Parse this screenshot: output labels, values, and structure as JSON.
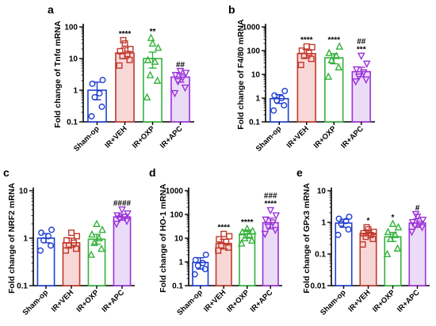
{
  "colors": {
    "Sham-op": "#1f3fd0",
    "IR+VEH": "#c0392b",
    "IR+OXP": "#33b23a",
    "IR+APC": "#9b30d9",
    "fill_VEH": "#f8d7d7",
    "fill_APC": "#eadcf7"
  },
  "chart_data": [
    {
      "id": "a",
      "label": "a",
      "type": "bar",
      "yscale": "log",
      "ylabel": "Fold change of Tnfα mRNA",
      "ylim": [
        0.1,
        100
      ],
      "yticks": [
        "0.1",
        "1",
        "10",
        "100"
      ],
      "categories": [
        "Sham-op",
        "IR+VEH",
        "IR+OXP",
        "IR+APC"
      ],
      "values": [
        1.0,
        15,
        10,
        2.6
      ],
      "errors": [
        [
          0.5,
          1.8
        ],
        [
          10,
          22
        ],
        [
          5,
          16
        ],
        [
          1.8,
          3.4
        ]
      ],
      "points": [
        [
          0.15,
          0.3,
          0.6,
          0.8,
          1.6,
          2.1
        ],
        [
          6,
          9,
          12,
          14,
          17,
          20,
          30,
          38
        ],
        [
          0.6,
          2,
          3,
          8,
          9,
          22,
          30,
          45
        ],
        [
          0.8,
          1.2,
          1.9,
          2.5,
          3,
          3.5,
          4
        ]
      ],
      "annotations": [
        "",
        "****",
        "**",
        "##"
      ],
      "markers": [
        "circle",
        "square",
        "triangle",
        "triangle-down"
      ]
    },
    {
      "id": "b",
      "label": "b",
      "type": "bar",
      "yscale": "log",
      "ylabel": "Fold change of F4/80 mRNA",
      "ylim": [
        0.1,
        1000
      ],
      "yticks": [
        "0.1",
        "1",
        "10",
        "100",
        "1000"
      ],
      "categories": [
        "Sham-op",
        "IR+VEH",
        "IR+OXP",
        "IR+APC"
      ],
      "values": [
        0.95,
        75,
        50,
        13
      ],
      "errors": [
        [
          0.6,
          1.4
        ],
        [
          50,
          110
        ],
        [
          28,
          75
        ],
        [
          8,
          20
        ]
      ],
      "points": [
        [
          0.3,
          0.5,
          0.8,
          1.0,
          1.3,
          2.0
        ],
        [
          25,
          45,
          60,
          80,
          100,
          140,
          150
        ],
        [
          8,
          20,
          40,
          60,
          80,
          150
        ],
        [
          5,
          6,
          8,
          12,
          16,
          28,
          60
        ]
      ],
      "annotations": [
        "",
        "****",
        "****",
        "##\n***"
      ],
      "markers": [
        "circle",
        "square",
        "triangle",
        "triangle-down"
      ]
    },
    {
      "id": "c",
      "label": "c",
      "type": "bar",
      "yscale": "log",
      "ylabel": "Fold change of NRF2 mRNA",
      "ylim": [
        0.1,
        10
      ],
      "yticks": [
        "0.1",
        "1",
        "10"
      ],
      "categories": [
        "Sham-op",
        "IR+VEH",
        "IR+OXP",
        "IR+APC"
      ],
      "values": [
        1.0,
        0.8,
        0.95,
        2.8
      ],
      "errors": [
        [
          0.8,
          1.25
        ],
        [
          0.65,
          1.0
        ],
        [
          0.75,
          1.2
        ],
        [
          2.4,
          3.2
        ]
      ],
      "points": [
        [
          0.55,
          0.7,
          0.9,
          1.1,
          1.3,
          1.5
        ],
        [
          0.55,
          0.6,
          0.7,
          0.8,
          0.9,
          1.1,
          1.3
        ],
        [
          0.45,
          0.6,
          0.8,
          1.0,
          1.2,
          1.5,
          2.0
        ],
        [
          2.0,
          2.3,
          2.6,
          2.8,
          3.0,
          3.3,
          4.0
        ]
      ],
      "annotations": [
        "",
        "",
        "",
        "####"
      ],
      "markers": [
        "circle",
        "square",
        "triangle",
        "triangle-down"
      ]
    },
    {
      "id": "d",
      "label": "d",
      "type": "bar",
      "yscale": "log",
      "ylabel": "Fold change of HO-1 mRNA",
      "ylim": [
        0.1,
        1000
      ],
      "yticks": [
        "0.1",
        "1",
        "10",
        "100",
        "1000"
      ],
      "categories": [
        "Sham-op",
        "IR+VEH",
        "IR+OXP",
        "IR+APC"
      ],
      "values": [
        0.95,
        6,
        15,
        45
      ],
      "errors": [
        [
          0.5,
          1.5
        ],
        [
          3.5,
          9
        ],
        [
          10,
          22
        ],
        [
          25,
          70
        ]
      ],
      "points": [
        [
          0.3,
          0.5,
          0.7,
          0.9,
          1.2,
          2.0
        ],
        [
          3,
          4,
          5,
          7,
          9,
          12,
          15
        ],
        [
          6,
          8,
          10,
          14,
          18,
          20,
          25
        ],
        [
          15,
          22,
          30,
          45,
          60,
          90,
          150
        ]
      ],
      "annotations": [
        "",
        "****",
        "****",
        "###\n****"
      ],
      "markers": [
        "circle",
        "square",
        "triangle",
        "triangle-down"
      ]
    },
    {
      "id": "e",
      "label": "e",
      "type": "bar",
      "yscale": "log",
      "ylabel": "Fold change of GPx3 mRNA",
      "ylim": [
        0.01,
        10
      ],
      "yticks": [
        "0.01",
        "0.1",
        "1",
        "10"
      ],
      "categories": [
        "Sham-op",
        "IR+VEH",
        "IR+OXP",
        "IR+APC"
      ],
      "values": [
        0.95,
        0.45,
        0.35,
        0.95
      ],
      "errors": [
        [
          0.7,
          1.25
        ],
        [
          0.38,
          0.55
        ],
        [
          0.25,
          0.48
        ],
        [
          0.7,
          1.3
        ]
      ],
      "points": [
        [
          0.4,
          0.6,
          0.9,
          1.1,
          1.3,
          1.5
        ],
        [
          0.2,
          0.3,
          0.35,
          0.4,
          0.45,
          0.5,
          0.6,
          0.7
        ],
        [
          0.1,
          0.15,
          0.3,
          0.4,
          0.5,
          0.7,
          0.9
        ],
        [
          0.5,
          0.7,
          0.8,
          0.9,
          1.0,
          1.2,
          1.5,
          1.8
        ]
      ],
      "annotations": [
        "",
        "*",
        "*",
        "#"
      ],
      "markers": [
        "circle",
        "square",
        "triangle",
        "triangle-down"
      ]
    }
  ]
}
